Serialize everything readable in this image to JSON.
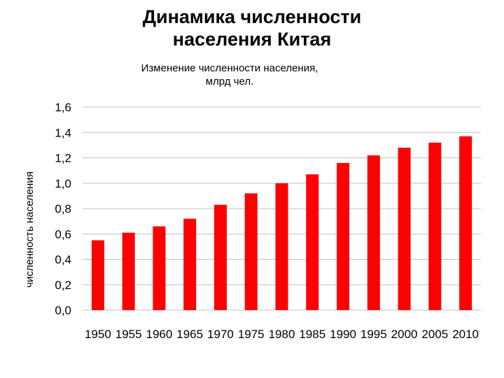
{
  "slide": {
    "title_line1": "Динамика численности",
    "title_line2": "населения Китая"
  },
  "chart_data": {
    "type": "bar",
    "title_line1": "Изменение численности населения,",
    "title_line2": "млрд чел.",
    "ylabel": "численность населения",
    "xlabel": "",
    "categories": [
      "1950",
      "1955",
      "1960",
      "1965",
      "1970",
      "1975",
      "1980",
      "1985",
      "1990",
      "1995",
      "2000",
      "2005",
      "2010"
    ],
    "series": [
      {
        "values": [
          0.55,
          0.61,
          0.66,
          0.72,
          0.83,
          0.92,
          1.0,
          1.07,
          1.16,
          1.22,
          1.28,
          1.32,
          1.37
        ]
      }
    ],
    "ylim": [
      0,
      1.6
    ],
    "yticks": [
      "0,0",
      "0,2",
      "0,4",
      "0,6",
      "0,8",
      "1,0",
      "1,2",
      "1,4",
      "1,6"
    ],
    "grid": true,
    "bar_color": "#ff0000",
    "grid_color": "#c0c0c0"
  }
}
